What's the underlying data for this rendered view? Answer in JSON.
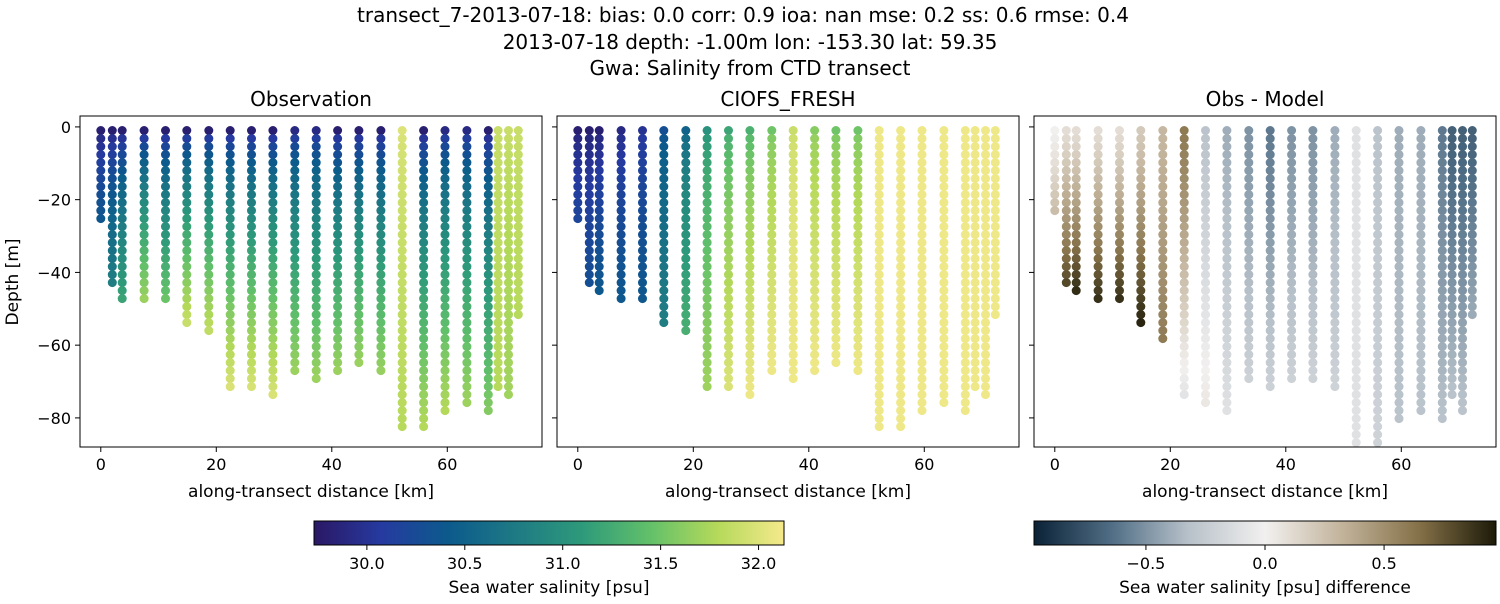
{
  "title_lines": [
    "transect_7-2013-07-18: bias: 0.0  corr: 0.9  ioa: nan  mse: 0.2  ss: 0.6  rmse: 0.4",
    "2013-07-18 depth: -1.00m lon: -153.30 lat: 59.35",
    "Gwa: Salinity from CTD transect"
  ],
  "chart_data": [
    {
      "type": "scatter",
      "title": "Observation",
      "xlabel": "along-transect distance [km]",
      "ylabel": "Depth [m]",
      "xlim": [
        -3.6,
        76.4
      ],
      "ylim": [
        -88,
        3
      ],
      "xticks": [
        0,
        20,
        40,
        60
      ],
      "yticks": [
        0,
        -20,
        -40,
        -60,
        -80
      ],
      "colormap": "haline",
      "stations": [
        {
          "x": 0.0,
          "max_depth": 26,
          "surface": 29.8,
          "deep": 30.4
        },
        {
          "x": 2.0,
          "max_depth": 43,
          "surface": 29.8,
          "deep": 30.8
        },
        {
          "x": 3.7,
          "max_depth": 48,
          "surface": 29.8,
          "deep": 31.2
        },
        {
          "x": 7.5,
          "max_depth": 48,
          "surface": 29.8,
          "deep": 31.7
        },
        {
          "x": 11.2,
          "max_depth": 48,
          "surface": 29.8,
          "deep": 31.5
        },
        {
          "x": 14.9,
          "max_depth": 54,
          "surface": 29.8,
          "deep": 31.9
        },
        {
          "x": 18.7,
          "max_depth": 58,
          "surface": 29.8,
          "deep": 31.9
        },
        {
          "x": 22.4,
          "max_depth": 72,
          "surface": 29.8,
          "deep": 32.0
        },
        {
          "x": 26.1,
          "max_depth": 73,
          "surface": 29.8,
          "deep": 32.0
        },
        {
          "x": 29.8,
          "max_depth": 75,
          "surface": 29.8,
          "deep": 32.0
        },
        {
          "x": 33.6,
          "max_depth": 68,
          "surface": 29.9,
          "deep": 31.7
        },
        {
          "x": 37.3,
          "max_depth": 70,
          "surface": 29.9,
          "deep": 31.7
        },
        {
          "x": 41.0,
          "max_depth": 68,
          "surface": 29.8,
          "deep": 31.7
        },
        {
          "x": 44.7,
          "max_depth": 66,
          "surface": 29.8,
          "deep": 31.7
        },
        {
          "x": 48.5,
          "max_depth": 69,
          "surface": 29.8,
          "deep": 31.7
        },
        {
          "x": 52.2,
          "max_depth": 84,
          "surface": 32.0,
          "deep": 31.8
        },
        {
          "x": 55.9,
          "max_depth": 83,
          "surface": 29.8,
          "deep": 31.8
        },
        {
          "x": 59.6,
          "max_depth": 79,
          "surface": 29.9,
          "deep": 31.8
        },
        {
          "x": 63.4,
          "max_depth": 76,
          "surface": 29.9,
          "deep": 31.7
        },
        {
          "x": 67.1,
          "max_depth": 79,
          "surface": 29.8,
          "deep": 31.6
        },
        {
          "x": 68.8,
          "max_depth": 72,
          "surface": 31.9,
          "deep": 31.8
        },
        {
          "x": 70.6,
          "max_depth": 75,
          "surface": 31.9,
          "deep": 31.7
        },
        {
          "x": 72.3,
          "max_depth": 52,
          "surface": 31.9,
          "deep": 31.8
        }
      ]
    },
    {
      "type": "scatter",
      "title": "CIOFS_FRESH",
      "xlabel": "along-transect distance [km]",
      "xlim": [
        -3.6,
        76.4
      ],
      "ylim": [
        -88,
        3
      ],
      "xticks": [
        0,
        20,
        40,
        60
      ],
      "yticks": [
        0,
        -20,
        -40,
        -60,
        -80
      ],
      "colormap": "haline",
      "stations": [
        {
          "x": 0.0,
          "max_depth": 26,
          "surface": 29.8,
          "deep": 30.2
        },
        {
          "x": 2.0,
          "max_depth": 43,
          "surface": 29.8,
          "deep": 30.3
        },
        {
          "x": 3.7,
          "max_depth": 45,
          "surface": 29.8,
          "deep": 30.4
        },
        {
          "x": 7.5,
          "max_depth": 48,
          "surface": 29.9,
          "deep": 30.4
        },
        {
          "x": 11.2,
          "max_depth": 48,
          "surface": 30.0,
          "deep": 30.4
        },
        {
          "x": 14.9,
          "max_depth": 54,
          "surface": 30.3,
          "deep": 30.8
        },
        {
          "x": 18.7,
          "max_depth": 58,
          "surface": 30.5,
          "deep": 31.3
        },
        {
          "x": 22.4,
          "max_depth": 72,
          "surface": 31.0,
          "deep": 31.7
        },
        {
          "x": 26.1,
          "max_depth": 73,
          "surface": 31.2,
          "deep": 32.0
        },
        {
          "x": 29.8,
          "max_depth": 75,
          "surface": 31.3,
          "deep": 32.1
        },
        {
          "x": 33.6,
          "max_depth": 68,
          "surface": 31.5,
          "deep": 32.1
        },
        {
          "x": 37.3,
          "max_depth": 70,
          "surface": 31.9,
          "deep": 32.1
        },
        {
          "x": 41.0,
          "max_depth": 68,
          "surface": 31.6,
          "deep": 32.1
        },
        {
          "x": 44.7,
          "max_depth": 66,
          "surface": 31.5,
          "deep": 32.1
        },
        {
          "x": 48.5,
          "max_depth": 69,
          "surface": 31.5,
          "deep": 32.1
        },
        {
          "x": 52.2,
          "max_depth": 83,
          "surface": 32.1,
          "deep": 32.1
        },
        {
          "x": 55.9,
          "max_depth": 83,
          "surface": 32.1,
          "deep": 32.1
        },
        {
          "x": 59.6,
          "max_depth": 79,
          "surface": 32.1,
          "deep": 32.1
        },
        {
          "x": 63.4,
          "max_depth": 76,
          "surface": 32.1,
          "deep": 32.1
        },
        {
          "x": 67.1,
          "max_depth": 79,
          "surface": 32.1,
          "deep": 32.1
        },
        {
          "x": 68.8,
          "max_depth": 72,
          "surface": 32.1,
          "deep": 32.1
        },
        {
          "x": 70.6,
          "max_depth": 75,
          "surface": 32.1,
          "deep": 32.1
        },
        {
          "x": 72.3,
          "max_depth": 52,
          "surface": 32.1,
          "deep": 32.1
        }
      ]
    },
    {
      "type": "scatter",
      "title": "Obs - Model",
      "xlabel": "along-transect distance [km]",
      "xlim": [
        -3.6,
        76.4
      ],
      "ylim": [
        -88,
        3
      ],
      "xticks": [
        0,
        20,
        40,
        60
      ],
      "yticks": [
        0,
        -20,
        -40,
        -60,
        -80
      ],
      "colormap": "diff",
      "stations": [
        {
          "x": 0.0,
          "max_depth": 25,
          "surface": 0.0,
          "deep": 0.3
        },
        {
          "x": 2.0,
          "max_depth": 43,
          "surface": 0.1,
          "deep": 0.8
        },
        {
          "x": 3.7,
          "max_depth": 45,
          "surface": 0.1,
          "deep": 0.9
        },
        {
          "x": 7.5,
          "max_depth": 48,
          "surface": 0.1,
          "deep": 0.9
        },
        {
          "x": 11.2,
          "max_depth": 48,
          "surface": 0.1,
          "deep": 0.9
        },
        {
          "x": 14.9,
          "max_depth": 55,
          "surface": 0.2,
          "deep": 0.95
        },
        {
          "x": 18.7,
          "max_depth": 59,
          "surface": 0.3,
          "deep": 0.6
        },
        {
          "x": 22.4,
          "max_depth": 75,
          "surface": 0.6,
          "deep": -0.1
        },
        {
          "x": 26.1,
          "max_depth": 76,
          "surface": -0.3,
          "deep": 0.05
        },
        {
          "x": 29.8,
          "max_depth": 78,
          "surface": -0.4,
          "deep": -0.1
        },
        {
          "x": 33.6,
          "max_depth": 71,
          "surface": -0.5,
          "deep": -0.2
        },
        {
          "x": 37.3,
          "max_depth": 73,
          "surface": -0.6,
          "deep": -0.2
        },
        {
          "x": 41.0,
          "max_depth": 71,
          "surface": -0.5,
          "deep": -0.2
        },
        {
          "x": 44.7,
          "max_depth": 70,
          "surface": -0.5,
          "deep": -0.2
        },
        {
          "x": 48.5,
          "max_depth": 72,
          "surface": -0.4,
          "deep": -0.2
        },
        {
          "x": 52.2,
          "max_depth": 87,
          "surface": -0.1,
          "deep": -0.1
        },
        {
          "x": 55.9,
          "max_depth": 87,
          "surface": -0.3,
          "deep": -0.2
        },
        {
          "x": 59.6,
          "max_depth": 82,
          "surface": -0.4,
          "deep": -0.3
        },
        {
          "x": 63.4,
          "max_depth": 79,
          "surface": -0.4,
          "deep": -0.3
        },
        {
          "x": 67.1,
          "max_depth": 82,
          "surface": -0.6,
          "deep": -0.3
        },
        {
          "x": 68.8,
          "max_depth": 75,
          "surface": -0.7,
          "deep": -0.3
        },
        {
          "x": 70.6,
          "max_depth": 78,
          "surface": -0.7,
          "deep": -0.3
        },
        {
          "x": 72.3,
          "max_depth": 53,
          "surface": -0.7,
          "deep": -0.4
        }
      ]
    }
  ],
  "colorbars": [
    {
      "label": "Sea water salinity [psu]",
      "min": 29.73,
      "max": 32.13,
      "ticks": [
        "30.0",
        "30.5",
        "31.0",
        "31.5",
        "32.0"
      ],
      "colors": [
        "#2a1864",
        "#263aa0",
        "#0c5a8c",
        "#1e7a84",
        "#2e9a7a",
        "#62c06a",
        "#b4d95a",
        "#f5e98c"
      ]
    },
    {
      "label": "Sea water salinity [psu] difference",
      "min": -0.97,
      "max": 0.97,
      "ticks": [
        "−0.5",
        "0.0",
        "0.5"
      ],
      "colors": [
        "#0b2236",
        "#4f6d85",
        "#b7c1c9",
        "#f2f0ef",
        "#c2b39b",
        "#857148",
        "#1c1a08"
      ]
    }
  ]
}
